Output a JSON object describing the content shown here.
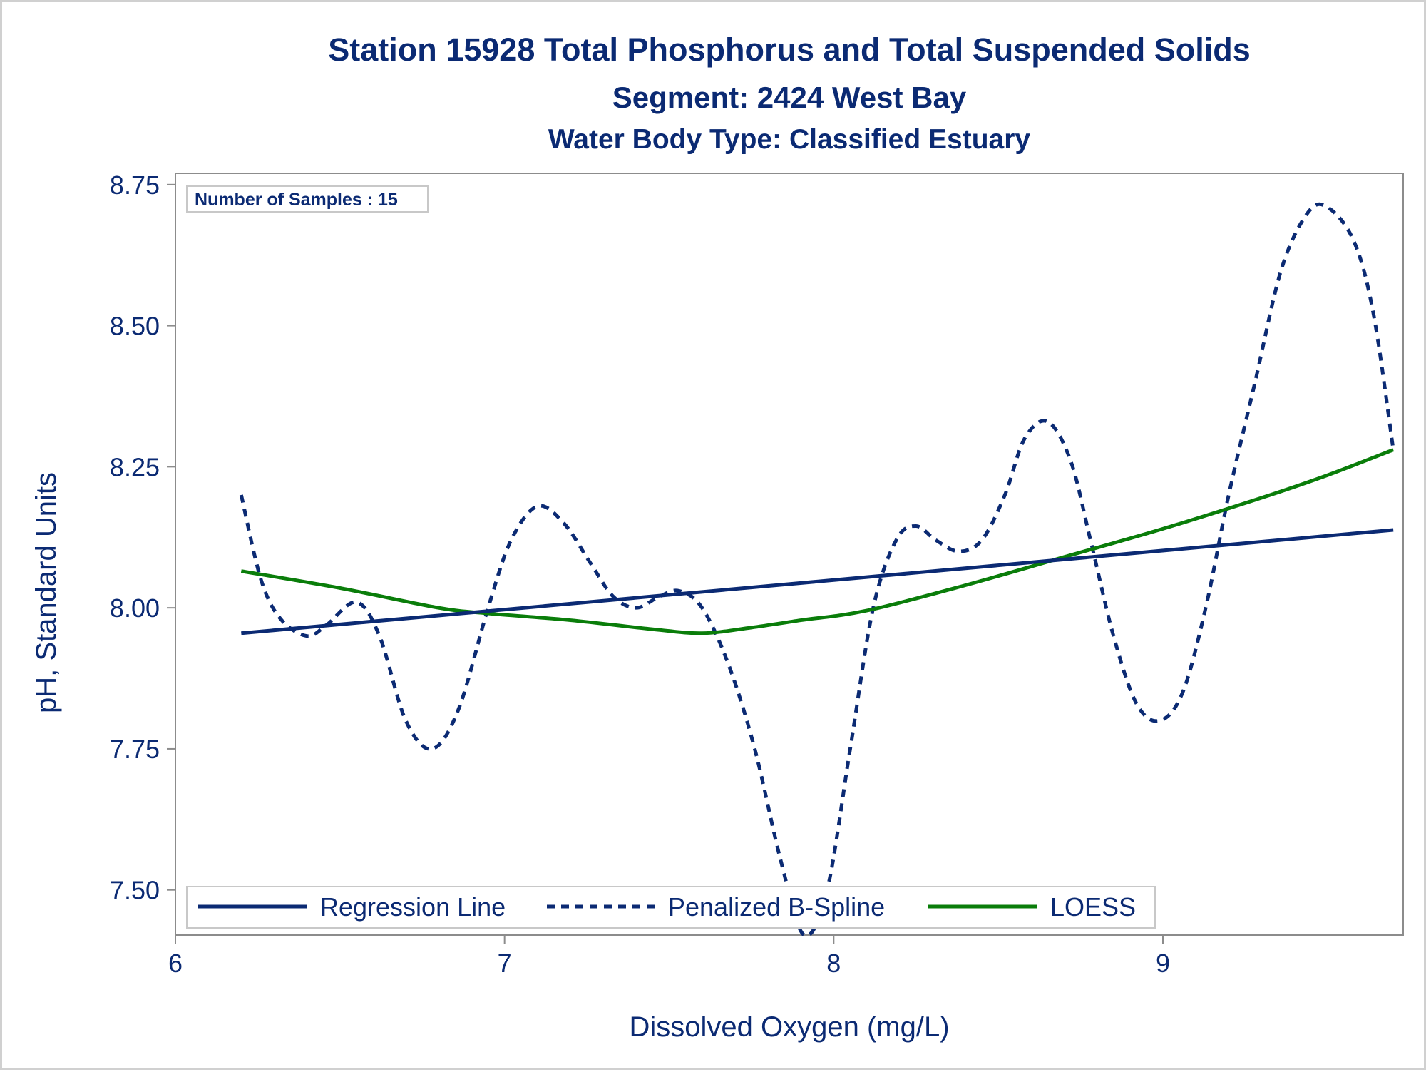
{
  "chart_data": {
    "type": "line",
    "title": "Station 15928  Total Phosphorus and Total Suspended Solids",
    "subtitle": "Segment: 2424  West Bay",
    "subtitle2": "Water Body Type: Classified Estuary",
    "xlabel": "Dissolved Oxygen (mg/L)",
    "ylabel": "pH, Standard Units",
    "xlim": [
      6.0,
      9.73
    ],
    "ylim": [
      7.42,
      8.77
    ],
    "xticks": [
      6,
      7,
      8,
      9
    ],
    "xtick_labels": [
      "6",
      "7",
      "8",
      "9"
    ],
    "yticks": [
      7.5,
      7.75,
      8.0,
      8.25,
      8.5,
      8.75
    ],
    "ytick_labels": [
      "7.50",
      "7.75",
      "8.00",
      "8.25",
      "8.50",
      "8.75"
    ],
    "annotation": "Number of Samples : 15",
    "legend_position": "bottom-inside",
    "grid": false,
    "series": [
      {
        "name": "Regression Line",
        "style": "solid",
        "color": "#0b2a73",
        "x": [
          6.2,
          9.7
        ],
        "y": [
          7.955,
          8.138
        ]
      },
      {
        "name": "Penalized B-Spline",
        "style": "dashed",
        "color": "#0b2a73",
        "x": [
          6.2,
          6.26,
          6.32,
          6.4,
          6.46,
          6.55,
          6.62,
          6.7,
          6.78,
          6.86,
          6.95,
          7.02,
          7.1,
          7.18,
          7.26,
          7.33,
          7.4,
          7.47,
          7.53,
          7.6,
          7.68,
          7.76,
          7.84,
          7.91,
          7.98,
          8.05,
          8.12,
          8.19,
          8.25,
          8.31,
          8.38,
          8.45,
          8.52,
          8.58,
          8.65,
          8.72,
          8.78,
          8.85,
          8.92,
          8.99,
          9.06,
          9.13,
          9.2,
          9.28,
          9.36,
          9.44,
          9.5,
          9.58,
          9.64,
          9.7
        ],
        "y": [
          8.2,
          8.05,
          7.98,
          7.95,
          7.97,
          8.01,
          7.95,
          7.8,
          7.75,
          7.82,
          8.0,
          8.12,
          8.18,
          8.15,
          8.08,
          8.02,
          8.0,
          8.02,
          8.03,
          8.0,
          7.9,
          7.75,
          7.55,
          7.42,
          7.5,
          7.75,
          8.0,
          8.12,
          8.145,
          8.12,
          8.1,
          8.12,
          8.2,
          8.3,
          8.33,
          8.26,
          8.12,
          7.95,
          7.83,
          7.8,
          7.85,
          8.0,
          8.2,
          8.4,
          8.6,
          8.7,
          8.71,
          8.65,
          8.52,
          8.28
        ]
      },
      {
        "name": "LOESS",
        "style": "solid",
        "color": "#0a7d0a",
        "x": [
          6.2,
          6.5,
          6.8,
          6.95,
          7.2,
          7.45,
          7.6,
          7.75,
          7.9,
          8.1,
          8.4,
          8.7,
          9.0,
          9.3,
          9.5,
          9.7
        ],
        "y": [
          8.065,
          8.035,
          8.0,
          7.99,
          7.978,
          7.962,
          7.955,
          7.965,
          7.978,
          7.995,
          8.04,
          8.09,
          8.14,
          8.195,
          8.235,
          8.28
        ]
      }
    ]
  }
}
